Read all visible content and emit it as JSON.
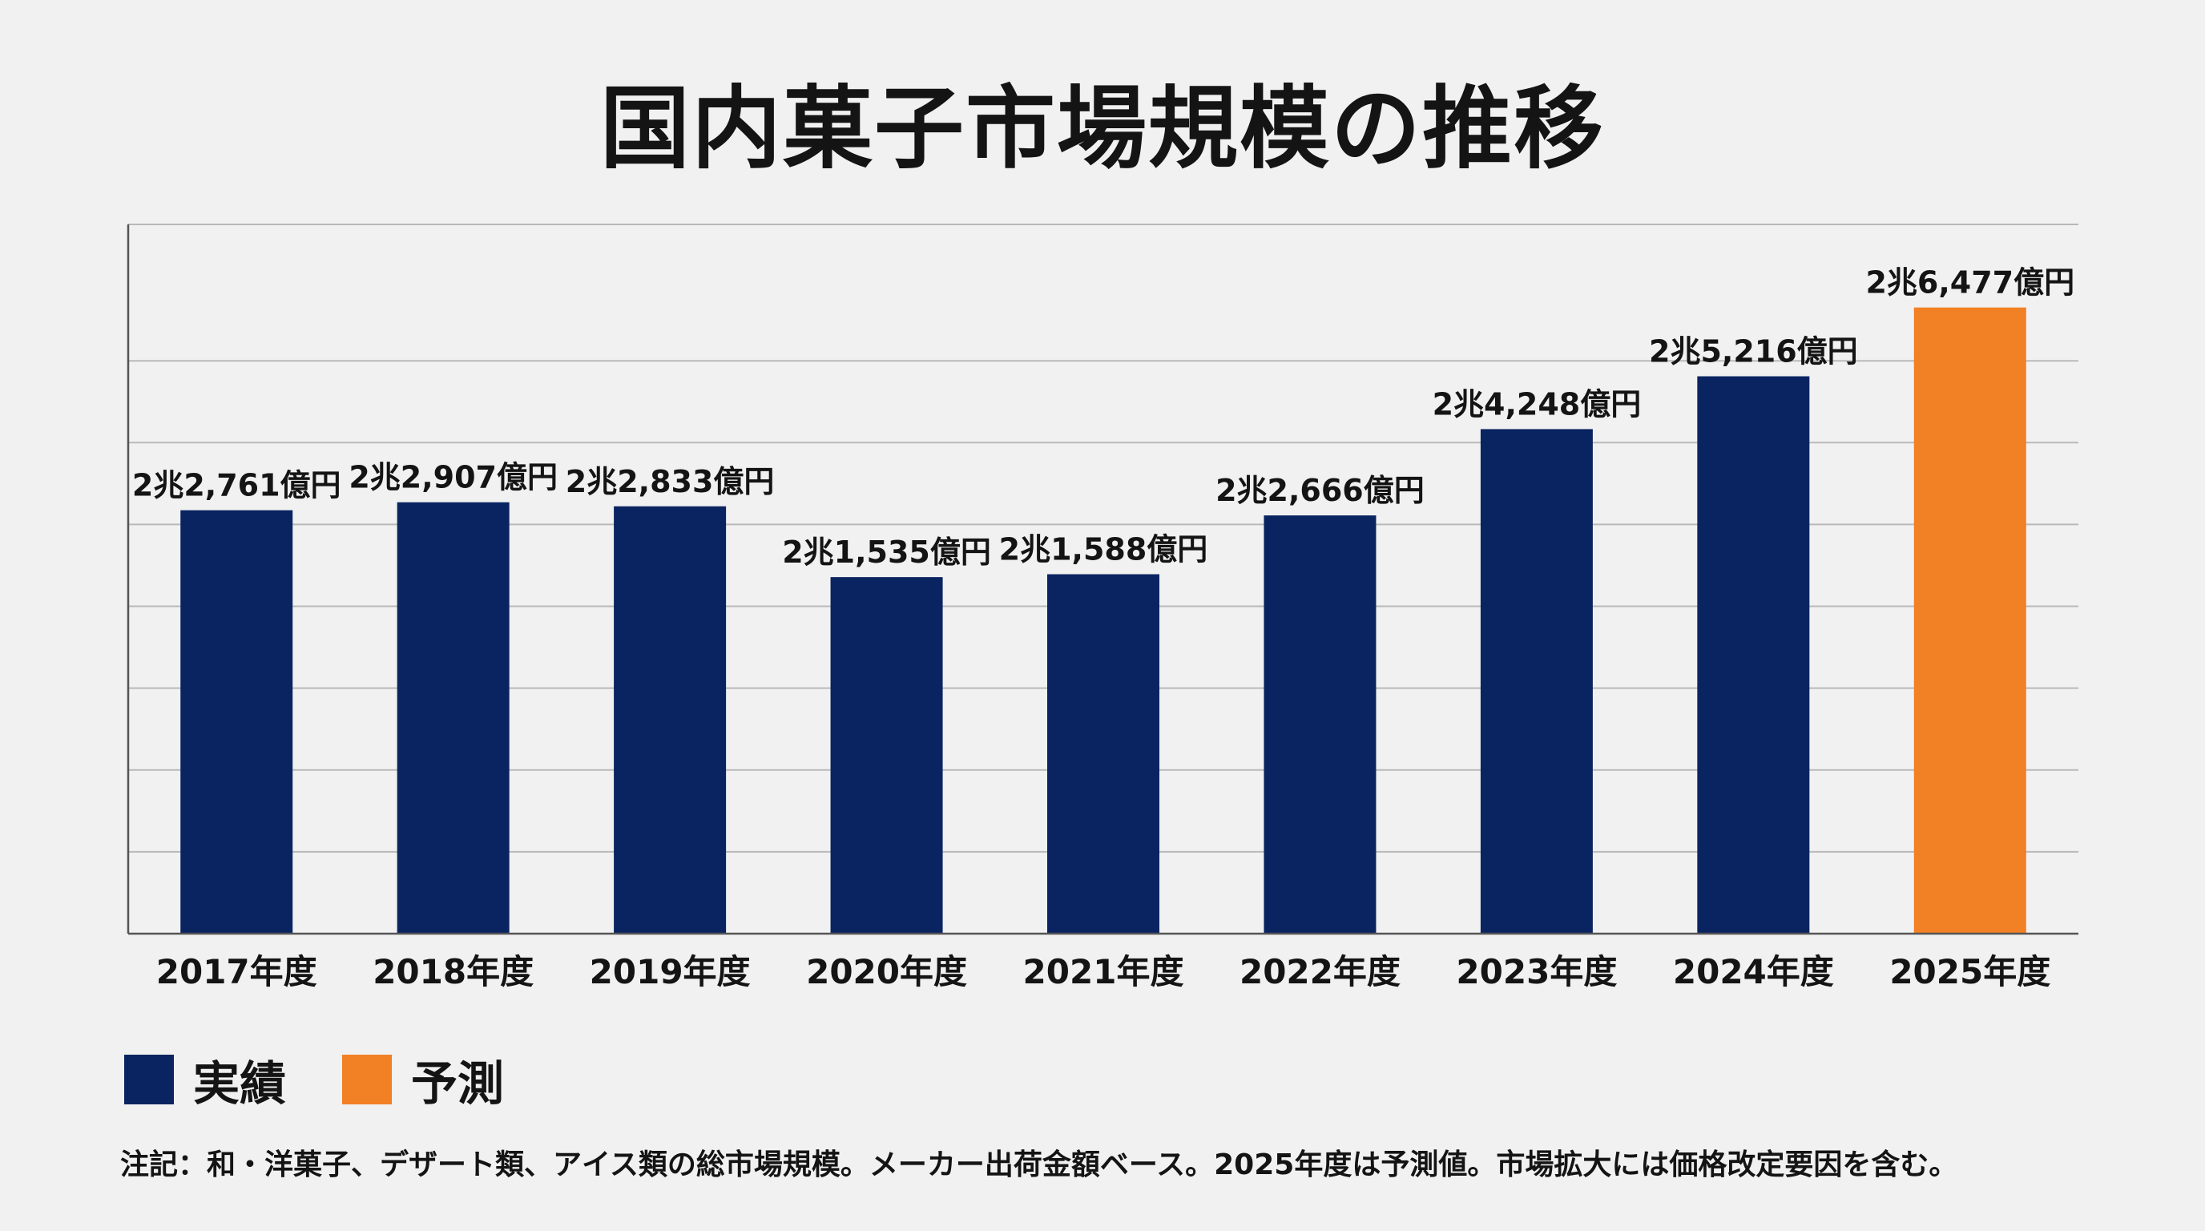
{
  "chart_data": {
    "type": "bar",
    "title": "国内菓子市場規模の推移",
    "categories": [
      "2017年度",
      "2018年度",
      "2019年度",
      "2020年度",
      "2021年度",
      "2022年度",
      "2023年度",
      "2024年度",
      "2025年度"
    ],
    "values": [
      22761,
      22907,
      22833,
      21535,
      21588,
      22666,
      24248,
      25216,
      26477
    ],
    "value_unit": "億円",
    "value_labels": [
      "2兆2,761億円",
      "2兆2,907億円",
      "2兆2,833億円",
      "2兆1,535億円",
      "2兆1,588億円",
      "2兆2,666億円",
      "2兆4,248億円",
      "2兆5,216億円",
      "2兆6,477億円"
    ],
    "series_kind": [
      "actual",
      "actual",
      "actual",
      "actual",
      "actual",
      "actual",
      "actual",
      "actual",
      "forecast"
    ],
    "ylim": [
      15000,
      28000
    ],
    "gridlines": [
      16500,
      18000,
      19500,
      21000,
      22500,
      24000,
      25500
    ],
    "xlabel": "",
    "ylabel": "",
    "grid": true,
    "legend_position": "bottom-left",
    "legend": [
      {
        "key": "actual",
        "label": "実績",
        "color": "#0a2461"
      },
      {
        "key": "forecast",
        "label": "予測",
        "color": "#f28024"
      }
    ],
    "footnote": "注記：和・洋菓子、デザート類、アイス類の総市場規模。メーカー出荷金額ベース。2025年度は予測値。市場拡大には価格改定要因を含む。"
  },
  "colors": {
    "actual": "#0a2461",
    "forecast": "#f28024",
    "grid": "#b9b9b9",
    "axis": "#555555",
    "background": "#f1f1f1"
  }
}
